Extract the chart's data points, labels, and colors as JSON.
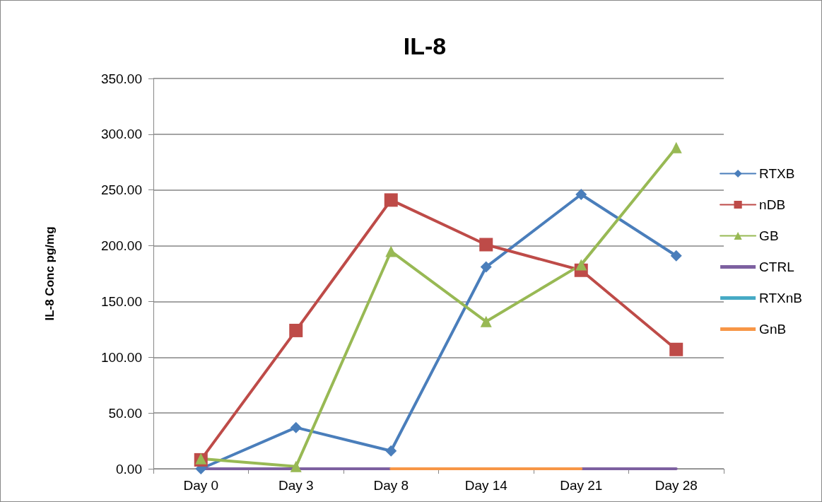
{
  "chart_data": {
    "type": "line",
    "title": "IL-8",
    "ylabel": "IL-8 Conc pg/mg",
    "categories": [
      "Day 0",
      "Day 3",
      "Day 8",
      "Day 14",
      "Day 21",
      "Day 28"
    ],
    "series": [
      {
        "name": "RTXB",
        "color": "#4a7ebb",
        "marker": "diamond",
        "values": [
          0,
          37,
          16,
          181,
          246,
          191
        ]
      },
      {
        "name": "nDB",
        "color": "#be4b48",
        "marker": "square",
        "values": [
          8,
          124,
          241,
          201,
          178,
          107
        ]
      },
      {
        "name": "GB",
        "color": "#98b954",
        "marker": "triangle",
        "values": [
          9,
          2,
          195,
          132,
          183,
          288
        ]
      },
      {
        "name": "CTRL",
        "color": "#7d60a0",
        "marker": "none",
        "values": [
          0,
          0,
          0,
          0,
          0,
          0
        ]
      },
      {
        "name": "RTXnB",
        "color": "#46aac5",
        "marker": "none",
        "values": [
          null,
          null,
          null,
          null,
          null,
          null
        ]
      },
      {
        "name": "GnB",
        "color": "#f79646",
        "marker": "none",
        "values": [
          null,
          null,
          0,
          0,
          0,
          null
        ]
      }
    ],
    "ylim": [
      0,
      350
    ],
    "yticks": [
      {
        "value": 0,
        "label": "0.00"
      },
      {
        "value": 50,
        "label": "50.00"
      },
      {
        "value": 100,
        "label": "100.00"
      },
      {
        "value": 150,
        "label": "150.00"
      },
      {
        "value": 200,
        "label": "200.00"
      },
      {
        "value": 250,
        "label": "250.00"
      },
      {
        "value": 300,
        "label": "300.00"
      },
      {
        "value": 350,
        "label": "350.00"
      }
    ],
    "grid": "y",
    "legend": "right"
  }
}
